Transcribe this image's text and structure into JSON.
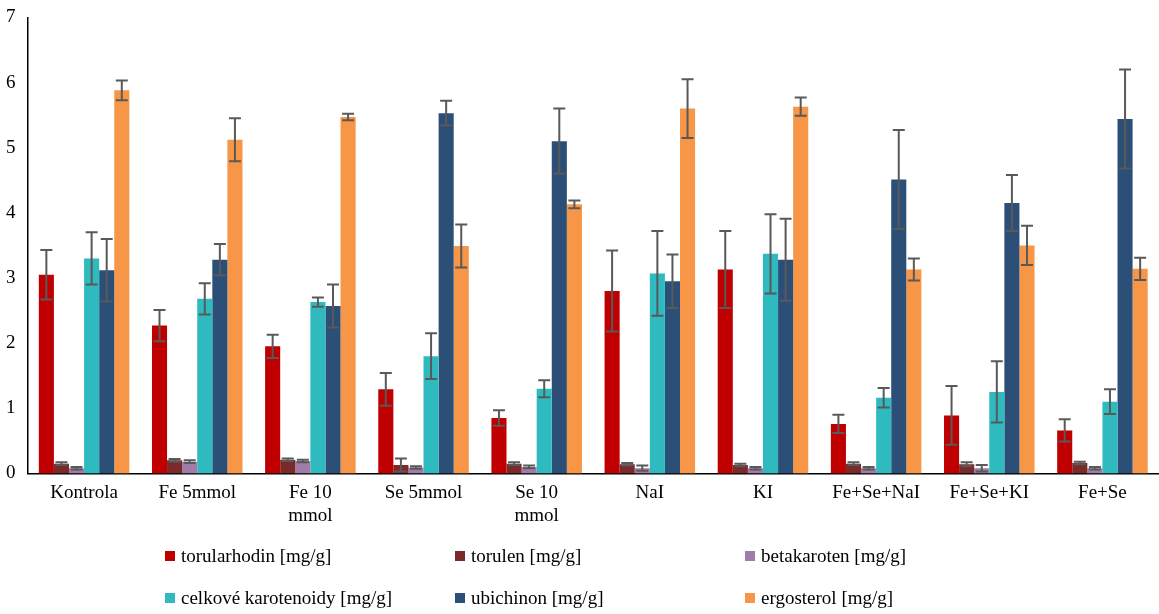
{
  "chart_data": {
    "type": "bar",
    "categories": [
      "Kontrola",
      "Fe 5mmol",
      "Fe 10 mmol",
      "Se 5mmol",
      "Se 10 mmol",
      "NaI",
      "KI",
      "Fe+Se+NaI",
      "Fe+Se+KI",
      "Fe+Se"
    ],
    "series": [
      {
        "name": "torularhodin [mg/g]",
        "color": "#c00000",
        "values": [
          3.05,
          2.27,
          1.95,
          1.29,
          0.85,
          2.8,
          3.13,
          0.76,
          0.89,
          0.66
        ],
        "errors": [
          0.38,
          0.24,
          0.18,
          0.25,
          0.12,
          0.62,
          0.59,
          0.14,
          0.45,
          0.17
        ]
      },
      {
        "name": "torulen [mg/g]",
        "color": "#7b2a2a",
        "values": [
          0.15,
          0.2,
          0.21,
          0.13,
          0.15,
          0.14,
          0.13,
          0.15,
          0.14,
          0.16
        ],
        "errors": [
          0.02,
          0.02,
          0.02,
          0.1,
          0.02,
          0.02,
          0.02,
          0.02,
          0.03,
          0.02
        ]
      },
      {
        "name": "betakaroten [mg/g]",
        "color": "#a07ca8",
        "values": [
          0.08,
          0.18,
          0.19,
          0.09,
          0.1,
          0.08,
          0.08,
          0.08,
          0.08,
          0.08
        ],
        "errors": [
          0.02,
          0.02,
          0.02,
          0.02,
          0.02,
          0.04,
          0.02,
          0.02,
          0.05,
          0.02
        ]
      },
      {
        "name": "celkové karotenoidy [mg/g]",
        "color": "#2fbac0",
        "values": [
          3.3,
          2.68,
          2.63,
          1.8,
          1.3,
          3.07,
          3.37,
          1.16,
          1.25,
          1.1
        ],
        "errors": [
          0.4,
          0.24,
          0.07,
          0.35,
          0.13,
          0.65,
          0.61,
          0.15,
          0.47,
          0.19
        ]
      },
      {
        "name": "ubichinon [mg/g]",
        "color": "#2c4f78",
        "values": [
          3.12,
          3.28,
          2.57,
          5.53,
          5.1,
          2.95,
          3.28,
          4.51,
          4.15,
          5.44
        ],
        "errors": [
          0.48,
          0.24,
          0.33,
          0.19,
          0.5,
          0.41,
          0.63,
          0.76,
          0.43,
          0.76
        ]
      },
      {
        "name": "ergosterol [mg/g]",
        "color": "#f79646",
        "values": [
          5.88,
          5.12,
          5.47,
          3.49,
          4.13,
          5.6,
          5.63,
          3.13,
          3.5,
          3.14
        ],
        "errors": [
          0.15,
          0.33,
          0.05,
          0.33,
          0.06,
          0.45,
          0.14,
          0.17,
          0.3,
          0.17
        ]
      }
    ],
    "ylim": [
      0,
      7
    ],
    "yticks": [
      0,
      1,
      2,
      3,
      4,
      5,
      6,
      7
    ],
    "grid": false,
    "legend": "bottom"
  }
}
